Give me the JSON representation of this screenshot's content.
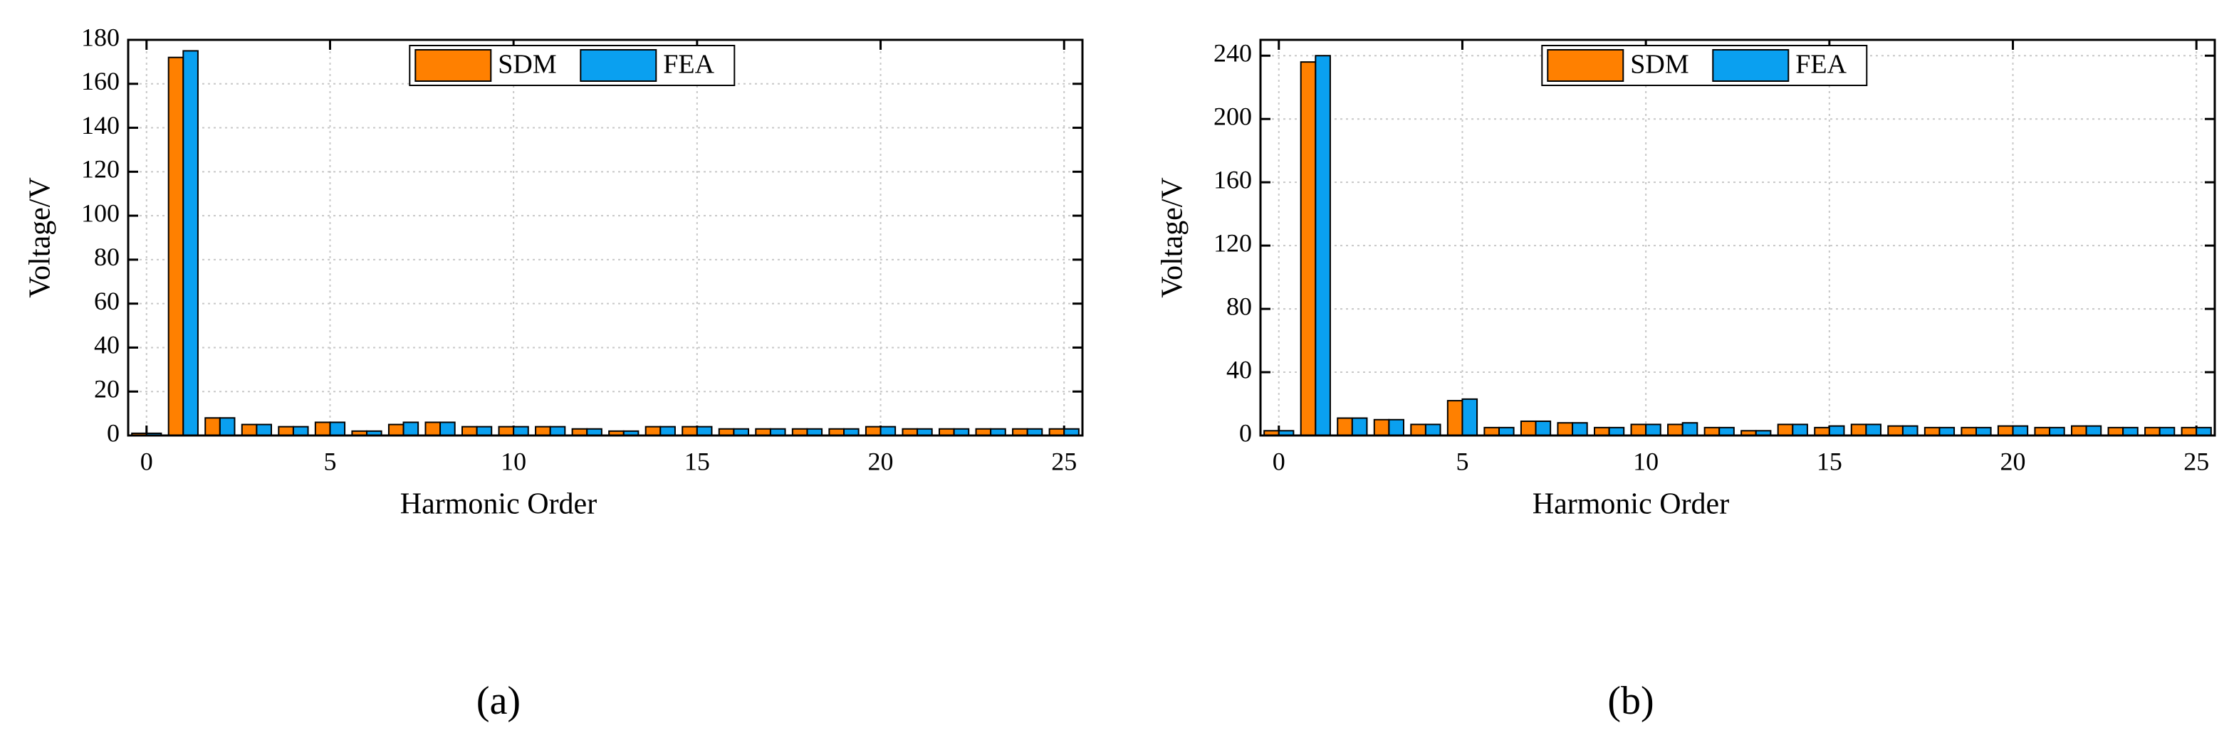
{
  "chart_data": [
    {
      "type": "bar",
      "caption": "(a)",
      "xlabel": "Harmonic Order",
      "ylabel": "Voltage/V",
      "x": [
        0,
        1,
        2,
        3,
        4,
        5,
        6,
        7,
        8,
        9,
        10,
        11,
        12,
        13,
        14,
        15,
        16,
        17,
        18,
        19,
        20,
        21,
        22,
        23,
        24,
        25
      ],
      "series": [
        {
          "name": "SDM",
          "color": "#ff8000",
          "values": [
            1,
            172,
            8,
            5,
            4,
            6,
            2,
            5,
            6,
            4,
            4,
            4,
            3,
            2,
            4,
            4,
            3,
            3,
            3,
            3,
            4,
            3,
            3,
            3,
            3,
            3
          ]
        },
        {
          "name": "FEA",
          "color": "#0aa0f0",
          "values": [
            1,
            175,
            8,
            5,
            4,
            6,
            2,
            6,
            6,
            4,
            4,
            4,
            3,
            2,
            4,
            4,
            3,
            3,
            3,
            3,
            4,
            3,
            3,
            3,
            3,
            3
          ]
        }
      ],
      "xlim": [
        -0.5,
        25.5
      ],
      "xticks": [
        0,
        5,
        10,
        15,
        20,
        25
      ],
      "ylim": [
        0,
        180
      ],
      "yticks": [
        0,
        20,
        40,
        60,
        80,
        100,
        120,
        140,
        160,
        180
      ],
      "grid": true,
      "legend": "top"
    },
    {
      "type": "bar",
      "caption": "(b)",
      "xlabel": "Harmonic Order",
      "ylabel": "Voltage/V",
      "x": [
        0,
        1,
        2,
        3,
        4,
        5,
        6,
        7,
        8,
        9,
        10,
        11,
        12,
        13,
        14,
        15,
        16,
        17,
        18,
        19,
        20,
        21,
        22,
        23,
        24,
        25
      ],
      "series": [
        {
          "name": "SDM",
          "color": "#ff8000",
          "values": [
            3,
            236,
            11,
            10,
            7,
            22,
            5,
            9,
            8,
            5,
            7,
            7,
            5,
            3,
            7,
            5,
            7,
            6,
            5,
            5,
            6,
            5,
            6,
            5,
            5,
            5
          ]
        },
        {
          "name": "FEA",
          "color": "#0aa0f0",
          "values": [
            3,
            240,
            11,
            10,
            7,
            23,
            5,
            9,
            8,
            5,
            7,
            8,
            5,
            3,
            7,
            6,
            7,
            6,
            5,
            5,
            6,
            5,
            6,
            5,
            5,
            5
          ]
        }
      ],
      "xlim": [
        -0.5,
        25.5
      ],
      "xticks": [
        0,
        5,
        10,
        15,
        20,
        25
      ],
      "ylim": [
        0,
        250
      ],
      "yticks": [
        0,
        40,
        80,
        120,
        160,
        200,
        240
      ],
      "grid": true,
      "legend": "top"
    }
  ]
}
